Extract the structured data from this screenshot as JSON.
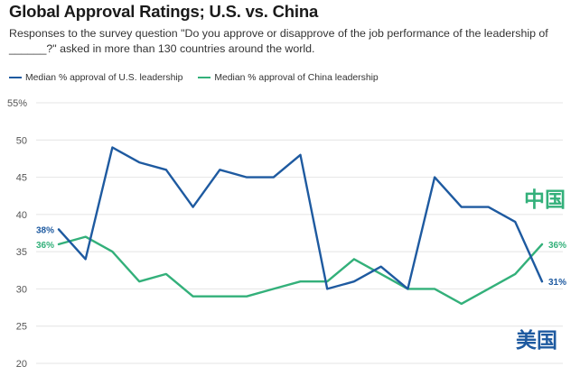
{
  "colors": {
    "us": "#1e5aa0",
    "china": "#33b07a",
    "grid": "#e4e4e4",
    "axis_text": "#555555"
  },
  "chart_data": {
    "type": "line",
    "title": "Global Approval Ratings; U.S. vs. China",
    "subtitle": "Responses to the survey question \"Do you approve or disapprove of the job performance of the leadership of ______?\" asked in more than 130 countries around the world.",
    "x": [
      0,
      1,
      2,
      3,
      4,
      5,
      6,
      7,
      8,
      9,
      10,
      11,
      12,
      13,
      14,
      15,
      16,
      17,
      18
    ],
    "xlabel": "",
    "ylabel": "",
    "ylim": [
      20,
      55
    ],
    "yticks": [
      20,
      25,
      30,
      35,
      40,
      45,
      50,
      55
    ],
    "ytick_labels": [
      "20",
      "25",
      "30",
      "35",
      "40",
      "45",
      "50",
      "55%"
    ],
    "series": [
      {
        "name": "Median % approval of U.S. leadership",
        "key": "us",
        "values": [
          38,
          34,
          49,
          47,
          46,
          41,
          46,
          45,
          45,
          48,
          30,
          31,
          33,
          30,
          45,
          41,
          41,
          39,
          31
        ],
        "start_label": "38%",
        "end_label": "31%",
        "tag": "美国"
      },
      {
        "name": "Median % approval of China leadership",
        "key": "china",
        "values": [
          36,
          37,
          35,
          31,
          32,
          29,
          29,
          29,
          30,
          31,
          31,
          34,
          32,
          30,
          30,
          28,
          30,
          32,
          36
        ],
        "start_label": "36%",
        "end_label": "36%",
        "tag": "中国"
      }
    ],
    "grid": true,
    "legend_position": "top-left"
  }
}
